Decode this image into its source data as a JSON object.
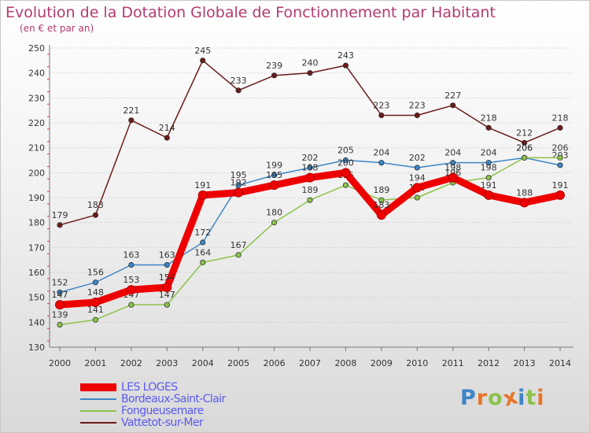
{
  "title": "Evolution de la Dotation Globale de Fonctionnement par Habitant",
  "subtitle": "(en € et par an)",
  "colors": {
    "title": "#b33a72",
    "axis_text": "#333333",
    "legend_text": "#5a5af0",
    "grid": "#c8c8c8"
  },
  "chart_data": {
    "type": "line",
    "title": "Evolution de la Dotation Globale de Fonctionnement par Habitant",
    "subtitle": "(en € et par an)",
    "x": [
      "2000",
      "2001",
      "2002",
      "2003",
      "2004",
      "2005",
      "2006",
      "2007",
      "2008",
      "2009",
      "2010",
      "2011",
      "2012",
      "2013",
      "2014"
    ],
    "ylim": [
      130,
      250
    ],
    "y_ticks": [
      "130",
      "140",
      "150",
      "160",
      "170",
      "180",
      "190",
      "200",
      "210",
      "220",
      "230",
      "240",
      "250"
    ],
    "grid": true,
    "legend_position": "bottom-left",
    "series": [
      {
        "name": "Vattetot-sur-Mer",
        "color": "#6b1a1a",
        "values": [
          179,
          183,
          221,
          214,
          245,
          233,
          239,
          240,
          243,
          223,
          223,
          227,
          218,
          212,
          218
        ],
        "labels": [
          "179",
          "183",
          "221",
          "214",
          "245",
          "233",
          "239",
          "240",
          "243",
          "223",
          "223",
          "227",
          "218",
          "212",
          "218"
        ]
      },
      {
        "name": "Bordeaux-Saint-Clair",
        "color": "#3d85c6",
        "values": [
          152,
          156,
          163,
          163,
          172,
          195,
          199,
          202,
          205,
          204,
          202,
          204,
          204,
          206,
          203
        ],
        "labels": [
          "152",
          "156",
          "163",
          "163",
          "172",
          "195",
          "199",
          "202",
          "205",
          "204",
          "202",
          "204",
          "204",
          "206",
          "203"
        ]
      },
      {
        "name": "Fongueusemare",
        "color": "#8bc34a",
        "values": [
          139,
          141,
          147,
          147,
          164,
          167,
          180,
          189,
          195,
          189,
          190,
          196,
          198,
          206,
          206
        ],
        "labels": [
          "139",
          "141",
          "147",
          "147",
          "164",
          "167",
          "180",
          "189",
          "195",
          "189",
          "190",
          "196",
          "198",
          "206",
          "206"
        ]
      },
      {
        "name": "LES LOGES",
        "color": "#ee0000",
        "values": [
          147,
          148,
          153,
          154,
          191,
          192,
          195,
          198,
          200,
          183,
          194,
          198,
          191,
          188,
          191
        ],
        "labels": [
          "147",
          "148",
          "153",
          "154",
          "191",
          "192",
          "195",
          "198",
          "200",
          "183",
          "194",
          "198",
          "191",
          "188",
          "191"
        ]
      }
    ]
  },
  "legend": {
    "items": [
      {
        "label": "LES LOGES",
        "color": "#ee0000",
        "thickness": 10
      },
      {
        "label": "Bordeaux-Saint-Clair",
        "color": "#3d85c6",
        "thickness": 1.5
      },
      {
        "label": "Fongueusemare",
        "color": "#8bc34a",
        "thickness": 1.5
      },
      {
        "label": "Vattetot-sur-Mer",
        "color": "#6b1a1a",
        "thickness": 1.5
      }
    ]
  },
  "logo": {
    "text": "Proxiti",
    "letter_colors": [
      "#3d85c6",
      "#e8742a",
      "#8bc34a",
      "#e8742a",
      "#3d85c6",
      "#8bc34a",
      "#e8742a"
    ]
  }
}
